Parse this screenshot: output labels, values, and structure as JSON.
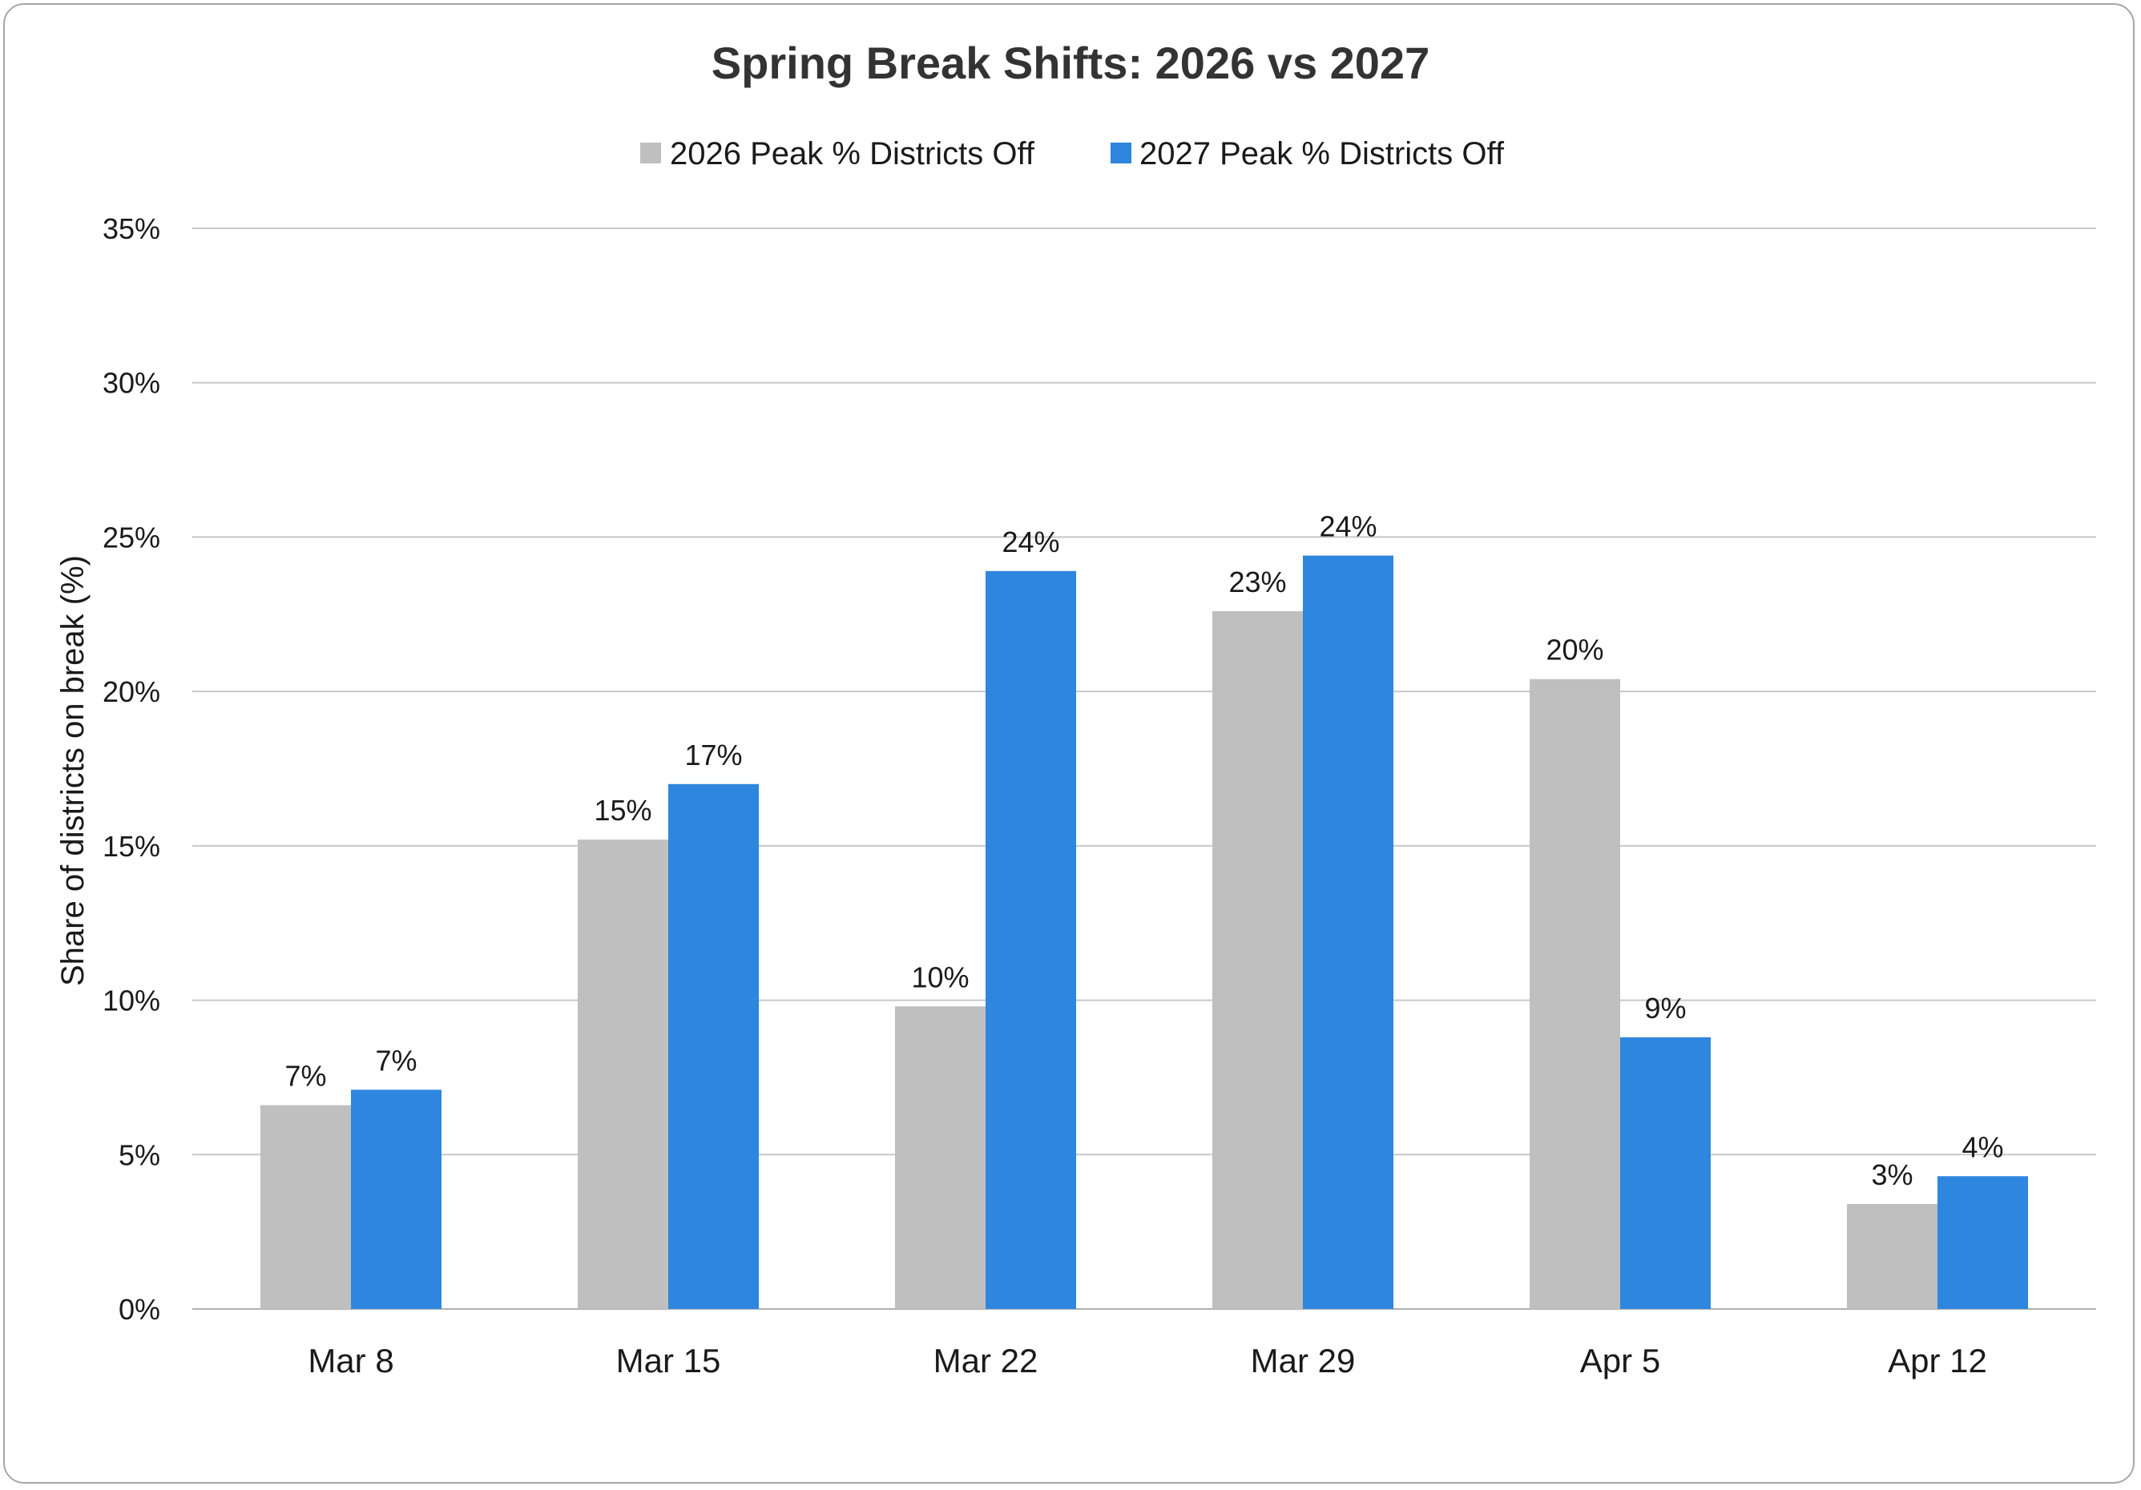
{
  "chart_data": {
    "type": "bar",
    "title": "Spring Break Shifts: 2026 vs 2027",
    "ylabel": "Share of districts on break (%)",
    "xlabel": "",
    "categories": [
      "Mar 8",
      "Mar 15",
      "Mar 22",
      "Mar 29",
      "Apr 5",
      "Apr 12"
    ],
    "series": [
      {
        "name": "2026 Peak % Districts Off",
        "color": "#bfbfbf",
        "values": [
          6.6,
          15.2,
          9.8,
          22.6,
          20.4,
          3.4
        ],
        "labels": [
          "7%",
          "15%",
          "10%",
          "23%",
          "20%",
          "3%"
        ]
      },
      {
        "name": "2027 Peak % Districts Off",
        "color": "#2e86de",
        "values": [
          7.1,
          17.0,
          23.9,
          24.4,
          8.8,
          4.3
        ],
        "labels": [
          "7%",
          "17%",
          "24%",
          "24%",
          "9%",
          "4%"
        ]
      }
    ],
    "ylim": [
      0,
      35
    ],
    "yticks": [
      0,
      5,
      10,
      15,
      20,
      25,
      30,
      35
    ],
    "ytick_labels": [
      "0%",
      "5%",
      "10%",
      "15%",
      "20%",
      "25%",
      "30%",
      "35%"
    ],
    "grid": true,
    "legend_position": "top-center"
  }
}
